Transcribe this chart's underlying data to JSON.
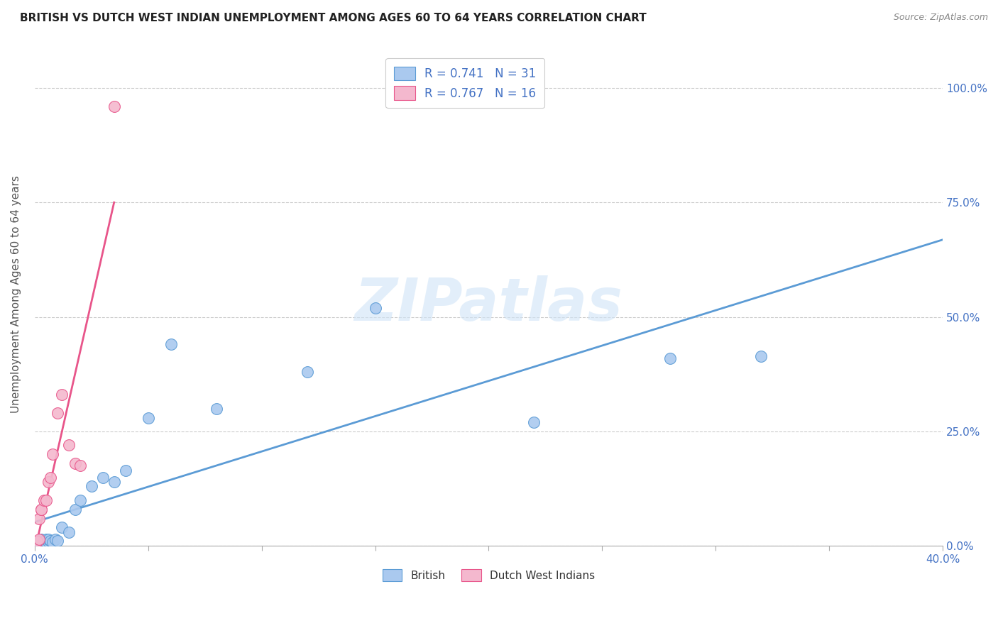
{
  "title": "BRITISH VS DUTCH WEST INDIAN UNEMPLOYMENT AMONG AGES 60 TO 64 YEARS CORRELATION CHART",
  "source": "Source: ZipAtlas.com",
  "ylabel": "Unemployment Among Ages 60 to 64 years",
  "xlim": [
    0,
    0.4
  ],
  "ylim": [
    0,
    1.1
  ],
  "xtick_positions": [
    0.0,
    0.05,
    0.1,
    0.15,
    0.2,
    0.25,
    0.3,
    0.35,
    0.4
  ],
  "ytick_labels": [
    "0.0%",
    "25.0%",
    "50.0%",
    "75.0%",
    "100.0%"
  ],
  "ytick_positions": [
    0.0,
    0.25,
    0.5,
    0.75,
    1.0
  ],
  "watermark": "ZIPatlas",
  "british_color": "#aac9ef",
  "dutch_color": "#f4b8ce",
  "british_edge_color": "#5b9bd5",
  "dutch_edge_color": "#e8558a",
  "british_line_color": "#5b9bd5",
  "dutch_line_color": "#e8558a",
  "legend_text_color": "#4472c4",
  "legend_r_british": "R = 0.741",
  "legend_n_british": "N = 31",
  "legend_r_dutch": "R = 0.767",
  "legend_n_dutch": "N = 16",
  "british_x": [
    0.001,
    0.002,
    0.002,
    0.003,
    0.003,
    0.004,
    0.004,
    0.005,
    0.005,
    0.006,
    0.006,
    0.007,
    0.008,
    0.009,
    0.01,
    0.012,
    0.015,
    0.018,
    0.02,
    0.025,
    0.03,
    0.035,
    0.04,
    0.05,
    0.06,
    0.08,
    0.12,
    0.15,
    0.22,
    0.28,
    0.32
  ],
  "british_y": [
    0.005,
    0.005,
    0.01,
    0.008,
    0.015,
    0.005,
    0.012,
    0.008,
    0.015,
    0.01,
    0.015,
    0.012,
    0.008,
    0.015,
    0.012,
    0.04,
    0.03,
    0.08,
    0.1,
    0.13,
    0.15,
    0.14,
    0.165,
    0.28,
    0.44,
    0.3,
    0.38,
    0.52,
    0.27,
    0.41,
    0.415
  ],
  "dutch_x": [
    0.001,
    0.002,
    0.002,
    0.003,
    0.003,
    0.004,
    0.005,
    0.006,
    0.007,
    0.008,
    0.01,
    0.012,
    0.015,
    0.018,
    0.02,
    0.035
  ],
  "dutch_y": [
    0.01,
    0.015,
    0.06,
    0.08,
    0.08,
    0.1,
    0.1,
    0.14,
    0.15,
    0.2,
    0.29,
    0.33,
    0.22,
    0.18,
    0.175,
    0.96
  ],
  "background_color": "#ffffff",
  "grid_color": "#cccccc",
  "tick_color": "#4472c4",
  "axis_label_color": "#555555"
}
